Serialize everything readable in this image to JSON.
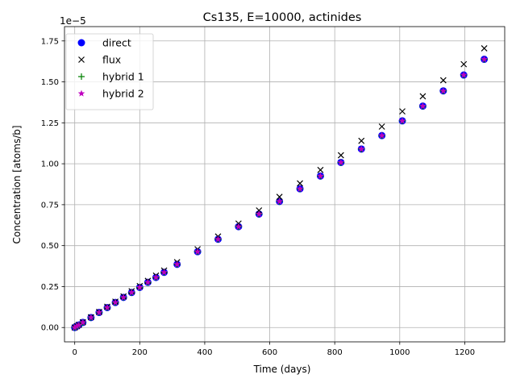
{
  "chart_data": {
    "type": "scatter",
    "title": "Cs135, E=10000, actinides",
    "xlabel": "Time (days)",
    "ylabel": "Concentration [atoms/b]",
    "y_offset_text": "1e−5",
    "xlim": [
      -31.5,
      1323
    ],
    "ylim": [
      -0.0875,
      1.8375
    ],
    "y_scale_factor": 1e-05,
    "grid": true,
    "legend_position": "top-left",
    "x_ticks": [
      0,
      200,
      400,
      600,
      800,
      1000,
      1200
    ],
    "x_tick_labels": [
      "0",
      "200",
      "400",
      "600",
      "800",
      "1000",
      "1200"
    ],
    "y_ticks": [
      0.0,
      0.25,
      0.5,
      0.75,
      1.0,
      1.25,
      1.5,
      1.75
    ],
    "y_tick_labels": [
      "0.00",
      "0.25",
      "0.50",
      "0.75",
      "1.00",
      "1.25",
      "1.50",
      "1.75"
    ],
    "x": [
      0,
      6.25,
      12.5,
      25,
      50,
      75,
      100,
      125,
      150,
      175,
      200,
      225,
      250,
      275,
      315,
      378,
      441,
      504,
      567,
      630,
      693,
      756,
      819,
      882,
      945,
      1008,
      1071,
      1134,
      1197,
      1260
    ],
    "series": [
      {
        "name": "direct",
        "marker": "circle",
        "color": "#0000ff",
        "values": [
          0,
          0.008,
          0.015,
          0.031,
          0.061,
          0.092,
          0.122,
          0.153,
          0.184,
          0.214,
          0.245,
          0.276,
          0.306,
          0.337,
          0.386,
          0.463,
          0.539,
          0.616,
          0.693,
          0.77,
          0.847,
          0.925,
          1.008,
          1.09,
          1.172,
          1.262,
          1.352,
          1.445,
          1.542,
          1.638
        ]
      },
      {
        "name": "flux",
        "marker": "x",
        "color": "#000000",
        "values": [
          0,
          0.008,
          0.016,
          0.032,
          0.063,
          0.095,
          0.127,
          0.158,
          0.19,
          0.222,
          0.253,
          0.285,
          0.317,
          0.348,
          0.399,
          0.478,
          0.556,
          0.635,
          0.715,
          0.798,
          0.88,
          0.962,
          1.052,
          1.14,
          1.227,
          1.32,
          1.412,
          1.51,
          1.608,
          1.705
        ]
      },
      {
        "name": "hybrid 1",
        "marker": "plus",
        "color": "#008000",
        "values": [
          0,
          0.008,
          0.015,
          0.031,
          0.061,
          0.092,
          0.122,
          0.153,
          0.184,
          0.214,
          0.245,
          0.276,
          0.306,
          0.337,
          0.386,
          0.463,
          0.539,
          0.616,
          0.693,
          0.77,
          0.847,
          0.925,
          1.008,
          1.09,
          1.172,
          1.262,
          1.352,
          1.445,
          1.542,
          1.638
        ]
      },
      {
        "name": "hybrid 2",
        "marker": "star",
        "color": "#bf00bf",
        "values": [
          0,
          0.008,
          0.015,
          0.031,
          0.061,
          0.092,
          0.122,
          0.153,
          0.184,
          0.214,
          0.245,
          0.276,
          0.306,
          0.337,
          0.386,
          0.463,
          0.539,
          0.616,
          0.693,
          0.77,
          0.847,
          0.925,
          1.008,
          1.09,
          1.172,
          1.262,
          1.352,
          1.445,
          1.542,
          1.638
        ]
      }
    ]
  }
}
